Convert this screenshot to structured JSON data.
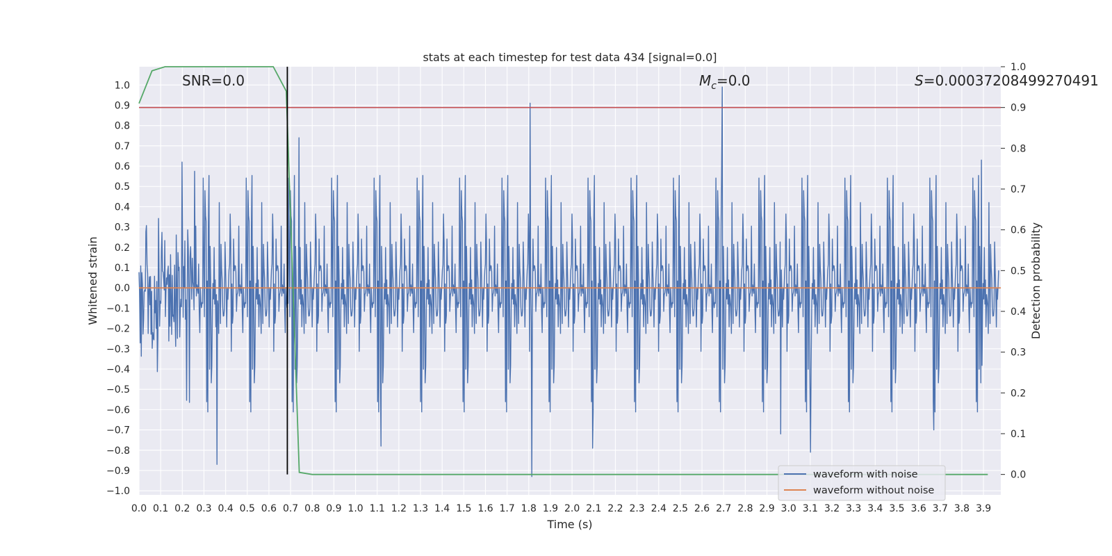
{
  "chart_data": {
    "type": "line",
    "title": "stats at each timestep for test data 434 [signal=0.0]",
    "xlabel": "Time (s)",
    "ylabel": "Whitened strain",
    "y2label": "Detection probability",
    "xlim": [
      0.0,
      3.98
    ],
    "ylim": [
      -1.02,
      1.09
    ],
    "y2lim": [
      -0.05,
      1.0
    ],
    "x_ticks": [
      "0.0",
      "0.1",
      "0.2",
      "0.3",
      "0.4",
      "0.5",
      "0.6",
      "0.7",
      "0.8",
      "0.9",
      "1.0",
      "1.1",
      "1.2",
      "1.3",
      "1.4",
      "1.5",
      "1.6",
      "1.7",
      "1.8",
      "1.9",
      "2.0",
      "2.1",
      "2.2",
      "2.3",
      "2.4",
      "2.5",
      "2.6",
      "2.7",
      "2.8",
      "2.9",
      "3.0",
      "3.1",
      "3.2",
      "3.3",
      "3.4",
      "3.5",
      "3.6",
      "3.7",
      "3.8",
      "3.9"
    ],
    "y_ticks": [
      "1.0",
      "0.9",
      "0.8",
      "0.7",
      "0.6",
      "0.5",
      "0.4",
      "0.3",
      "0.2",
      "0.1",
      "0.0",
      "−0.1",
      "−0.2",
      "−0.3",
      "−0.4",
      "−0.5",
      "−0.6",
      "−0.7",
      "−0.8",
      "−0.9",
      "−1.0"
    ],
    "y2_ticks": [
      "1.0",
      "0.9",
      "0.8",
      "0.7",
      "0.6",
      "0.5",
      "0.4",
      "0.3",
      "0.2",
      "0.1",
      "0.0"
    ],
    "grid": true,
    "annotations": {
      "snr": "SNR=0.0",
      "mc_symbol": "M",
      "mc_sub": "c",
      "mc_value": "=0.0",
      "s_symbol": "S",
      "s_value": "=0.00037208499270491"
    },
    "legend": {
      "placement": "lower-right",
      "entries": [
        "waveform with noise",
        "waveform without noise"
      ]
    },
    "series": [
      {
        "name": "waveform with noise",
        "color": "#4c72b0",
        "axis": "left",
        "note": "dense whitened noise, roughly symmetric around 0.0 with spikes up to ~1.0 near t=2.7s and down to ~-0.93 near t=1.82s",
        "spikes": [
          [
            0.36,
            -0.87
          ],
          [
            0.2,
            0.62
          ],
          [
            0.74,
            0.74
          ],
          [
            1.12,
            -0.78
          ],
          [
            1.81,
            0.91
          ],
          [
            1.82,
            -0.93
          ],
          [
            2.1,
            -0.79
          ],
          [
            2.7,
            0.99
          ],
          [
            2.97,
            -0.72
          ],
          [
            3.11,
            -0.81
          ],
          [
            3.68,
            -0.7
          ],
          [
            3.9,
            0.63
          ]
        ]
      },
      {
        "name": "waveform without noise",
        "color": "#dd8452",
        "axis": "left",
        "x": [
          0.0,
          3.98
        ],
        "values": [
          0.0,
          0.0
        ]
      },
      {
        "name": "detection probability",
        "color": "#55a868",
        "axis": "right",
        "x": [
          0.0,
          0.06,
          0.12,
          0.3,
          0.5,
          0.62,
          0.68,
          0.74,
          0.8,
          1.0,
          2.0,
          3.0,
          3.92
        ],
        "values": [
          0.91,
          0.99,
          1.0,
          1.0,
          1.0,
          1.0,
          0.94,
          0.005,
          0.0,
          0.0,
          0.0,
          0.0,
          0.0
        ]
      }
    ],
    "threshold_line": {
      "color": "#c44e52",
      "value": 0.9,
      "axis": "right"
    },
    "vertical_marker": {
      "color": "#000000",
      "x": 0.685
    }
  }
}
